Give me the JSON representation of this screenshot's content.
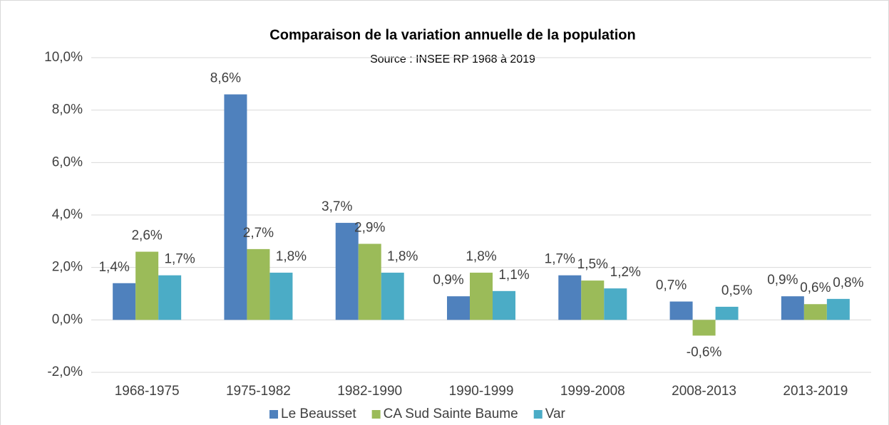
{
  "chart_data": {
    "type": "bar",
    "title": "Comparaison de la variation annuelle de la population",
    "subtitle": "Source : INSEE RP 1968 à 2019",
    "categories": [
      "1968-1975",
      "1975-1982",
      "1982-1990",
      "1990-1999",
      "1999-2008",
      "2008-2013",
      "2013-2019"
    ],
    "series": [
      {
        "name": "Le Beausset",
        "color": "#4f81bd",
        "values": [
          1.4,
          8.6,
          3.7,
          0.9,
          1.7,
          0.7,
          0.9
        ],
        "value_labels": [
          "1,4%",
          "8,6%",
          "3,7%",
          "0,9%",
          "1,7%",
          "0,7%",
          "0,9%"
        ]
      },
      {
        "name": "CA Sud Sainte Baume",
        "color": "#9bbb59",
        "values": [
          2.6,
          2.7,
          2.9,
          1.8,
          1.5,
          -0.6,
          0.6
        ],
        "value_labels": [
          "2,6%",
          "2,7%",
          "2,9%",
          "1,8%",
          "1,5%",
          "-0,6%",
          "0,6%"
        ]
      },
      {
        "name": "Var",
        "color": "#4bacc6",
        "values": [
          1.7,
          1.8,
          1.8,
          1.1,
          1.2,
          0.5,
          0.8
        ],
        "value_labels": [
          "1,7%",
          "1,8%",
          "1,8%",
          "1,1%",
          "1,2%",
          "0,5%",
          "0,8%"
        ]
      }
    ],
    "ylim": [
      -2,
      10
    ],
    "yticks": [
      {
        "value": -2,
        "label": "-2,0%"
      },
      {
        "value": 0,
        "label": "0,0%"
      },
      {
        "value": 2,
        "label": "2,0%"
      },
      {
        "value": 4,
        "label": "4,0%"
      },
      {
        "value": 6,
        "label": "6,0%"
      },
      {
        "value": 8,
        "label": "8,0%"
      },
      {
        "value": 10,
        "label": "10,0%"
      }
    ],
    "grid": true,
    "legend": "bottom"
  }
}
